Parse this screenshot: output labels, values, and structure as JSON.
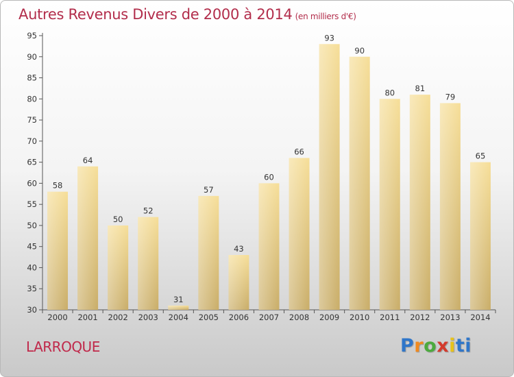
{
  "chart_data": {
    "type": "bar",
    "title": "Autres Revenus Divers de 2000 à 2014",
    "subtitle": "(en milliers d'€)",
    "categories": [
      "2000",
      "2001",
      "2002",
      "2003",
      "2004",
      "2005",
      "2006",
      "2007",
      "2008",
      "2009",
      "2010",
      "2011",
      "2012",
      "2013",
      "2014"
    ],
    "values": [
      58,
      64,
      50,
      52,
      31,
      57,
      43,
      60,
      66,
      93,
      90,
      80,
      81,
      79,
      65
    ],
    "ylim": [
      30,
      95
    ],
    "yticks": [
      30,
      35,
      40,
      45,
      50,
      55,
      60,
      65,
      70,
      75,
      80,
      85,
      90,
      95
    ],
    "grid": false,
    "bar_color": "#e7ce8a"
  },
  "place_name": "LARROQUE",
  "logo": {
    "parts": [
      "P",
      "r",
      "o",
      "x",
      "i",
      "ti"
    ]
  }
}
